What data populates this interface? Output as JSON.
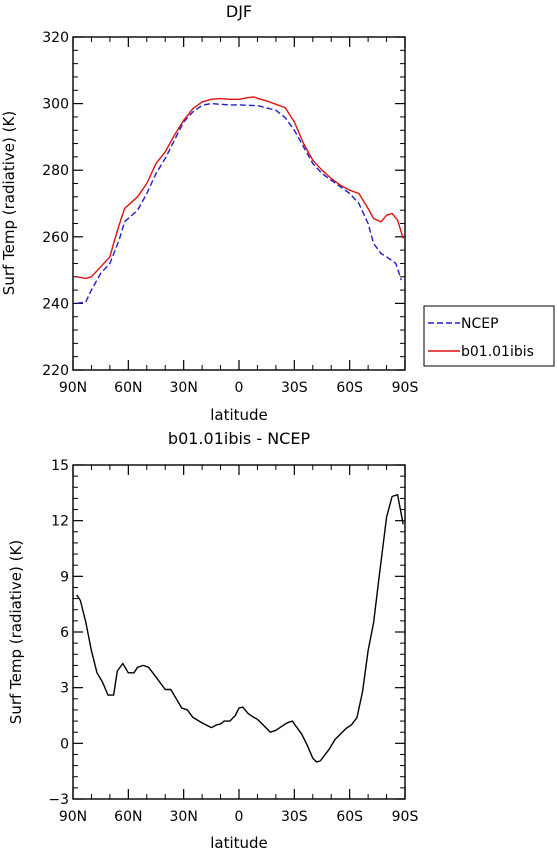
{
  "chart_data": [
    {
      "type": "line",
      "title": "DJF",
      "xlabel": "latitude",
      "ylabel": "Surf Temp (radiative) (K)",
      "xlim": [
        90,
        -90
      ],
      "ylim": [
        220,
        320
      ],
      "xticks": [
        90,
        60,
        30,
        0,
        -30,
        -60,
        -90
      ],
      "xtick_labels": [
        "90N",
        "60N",
        "30N",
        "0",
        "30S",
        "60S",
        "90S"
      ],
      "yticks": [
        220,
        240,
        260,
        280,
        300,
        320
      ],
      "ytick_labels": [
        "220",
        "240",
        "260",
        "280",
        "300",
        "320"
      ],
      "legend": "right",
      "series": [
        {
          "name": "NCEP",
          "color": "#1f1fcf",
          "dash": true,
          "x": [
            88,
            83,
            80,
            75,
            70,
            65,
            62,
            58,
            55,
            50,
            45,
            40,
            35,
            30,
            25,
            20,
            15,
            10,
            5,
            0,
            -5,
            -10,
            -15,
            -20,
            -25,
            -30,
            -35,
            -40,
            -45,
            -50,
            -55,
            -60,
            -65,
            -70,
            -73,
            -77,
            -80,
            -85,
            -88
          ],
          "y": [
            240,
            240.5,
            244,
            249,
            252,
            259,
            264.5,
            266.5,
            268,
            273,
            279,
            283.5,
            289,
            294.5,
            297.5,
            299.5,
            300,
            299.8,
            299.6,
            299.6,
            299.5,
            299.4,
            298.7,
            298,
            295.8,
            292,
            287,
            282,
            279,
            277,
            275,
            273,
            270,
            264,
            258,
            255,
            254,
            252,
            247
          ]
        },
        {
          "name": "b01.01ibis",
          "color": "#dd1111",
          "dash": false,
          "x": [
            88,
            83,
            80,
            75,
            70,
            68,
            65,
            62,
            58,
            55,
            50,
            45,
            40,
            35,
            30,
            25,
            20,
            15,
            10,
            5,
            0,
            -5,
            -8,
            -10,
            -15,
            -20,
            -25,
            -30,
            -35,
            -40,
            -45,
            -50,
            -55,
            -60,
            -65,
            -70,
            -73,
            -77,
            -80,
            -83,
            -86,
            -89
          ],
          "y": [
            248,
            247.5,
            248,
            251,
            254,
            258,
            263.5,
            268.5,
            270.5,
            272,
            276,
            282,
            285.5,
            290.5,
            295,
            298.5,
            300.5,
            301.3,
            301.5,
            301.3,
            301.3,
            301.8,
            302,
            301.6,
            300.8,
            299.8,
            298.8,
            294.5,
            288,
            283,
            280,
            277.5,
            275.5,
            274,
            273,
            268.5,
            265.5,
            264.5,
            266.5,
            267,
            265,
            259.5
          ]
        }
      ]
    },
    {
      "type": "line",
      "title": "b01.01ibis - NCEP",
      "xlabel": "latitude",
      "ylabel": "Surf Temp (radiative) (K)",
      "xlim": [
        90,
        -90
      ],
      "ylim": [
        -3,
        15
      ],
      "xticks": [
        90,
        60,
        30,
        0,
        -30,
        -60,
        -90
      ],
      "xtick_labels": [
        "90N",
        "60N",
        "30N",
        "0",
        "30S",
        "60S",
        "90S"
      ],
      "yticks": [
        -3,
        0,
        3,
        6,
        9,
        12,
        15
      ],
      "ytick_labels": [
        "−3",
        "0",
        "3",
        "6",
        "9",
        "12",
        "15"
      ],
      "series": [
        {
          "color": "#000000",
          "dash": false,
          "x": [
            88,
            86,
            83,
            80,
            77,
            74,
            71,
            68,
            66,
            63,
            60,
            57,
            55,
            52,
            49,
            46,
            43,
            40,
            37,
            34,
            31,
            28,
            25,
            20,
            15,
            12,
            10,
            8,
            5,
            2,
            0,
            -2,
            -5,
            -8,
            -10,
            -14,
            -17,
            -20,
            -23,
            -26,
            -29,
            -31,
            -34,
            -37,
            -40,
            -42,
            -44,
            -46,
            -49,
            -52,
            -55,
            -58,
            -61,
            -64,
            -67,
            -70,
            -73,
            -76,
            -80,
            -83,
            -86,
            -89
          ],
          "y": [
            8,
            7.7,
            6.5,
            5,
            3.8,
            3.3,
            2.6,
            2.6,
            3.9,
            4.3,
            3.8,
            3.8,
            4.1,
            4.2,
            4.1,
            3.7,
            3.3,
            2.9,
            2.9,
            2.4,
            1.9,
            1.8,
            1.4,
            1.1,
            0.85,
            1.0,
            1.05,
            1.2,
            1.2,
            1.5,
            1.9,
            1.95,
            1.6,
            1.4,
            1.3,
            0.9,
            0.6,
            0.7,
            0.9,
            1.1,
            1.2,
            0.9,
            0.5,
            -0.1,
            -0.8,
            -1.0,
            -0.95,
            -0.7,
            -0.3,
            0.2,
            0.5,
            0.8,
            1.0,
            1.4,
            2.8,
            5,
            6.5,
            9,
            12.2,
            13.3,
            13.4,
            11.8
          ]
        }
      ]
    }
  ]
}
